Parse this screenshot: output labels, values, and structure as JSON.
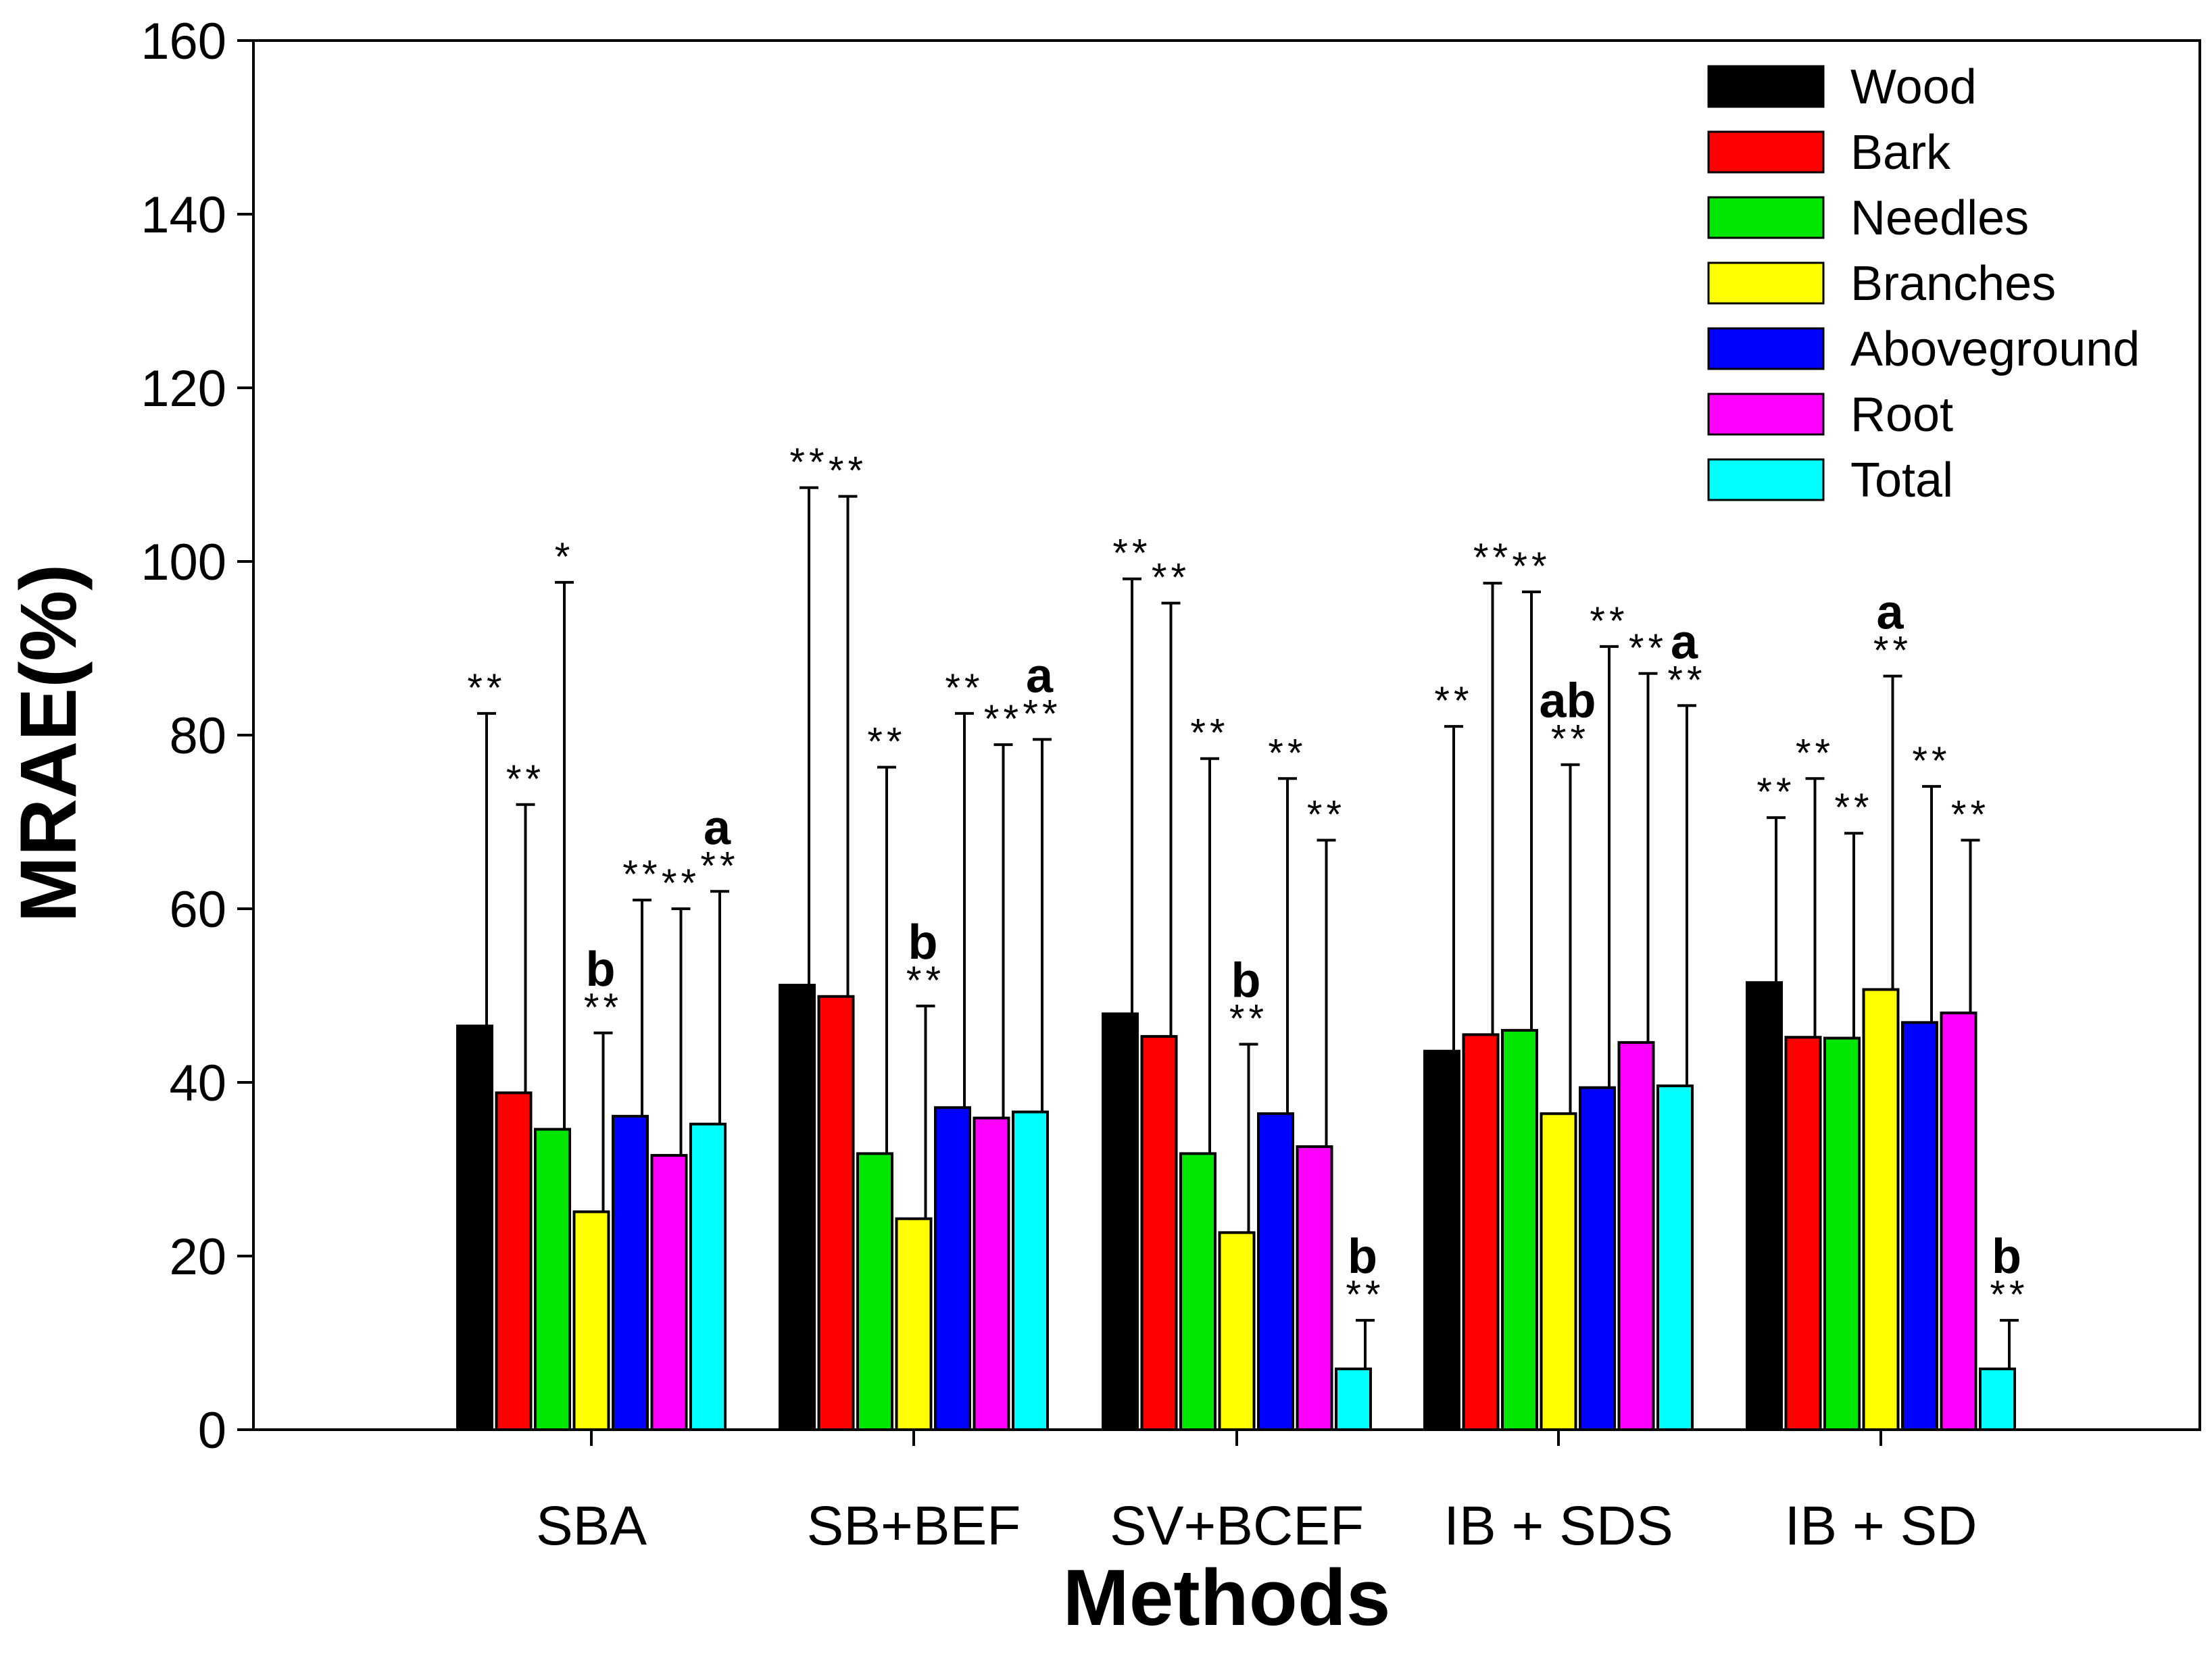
{
  "chart_data": {
    "type": "bar",
    "title": "",
    "xlabel": "Methods",
    "ylabel": "MRAE(%)",
    "ylim": [
      0,
      160
    ],
    "yticks": [
      0,
      20,
      40,
      60,
      80,
      100,
      120,
      140,
      160
    ],
    "ytick_labels": [
      "0",
      "20",
      "40",
      "60",
      "80",
      "100",
      "120",
      "140",
      "160"
    ],
    "grid": false,
    "legend_position": "top-right",
    "categories": [
      "SBA",
      "SB+BEF",
      "SV+BCEF",
      "IB + SDS",
      "IB + SD"
    ],
    "series": [
      {
        "name": "Wood",
        "color": "#000000",
        "values": [
          46.5,
          51.2,
          47.9,
          43.6,
          51.5
        ],
        "error_upper": [
          82.5,
          108.5,
          98.0,
          81.0,
          70.5
        ],
        "significance": [
          "**",
          "**",
          "**",
          "**",
          "**"
        ],
        "letters": [
          "",
          "",
          "",
          "",
          ""
        ]
      },
      {
        "name": "Bark",
        "color": "#ff0000",
        "values": [
          38.8,
          49.9,
          45.3,
          45.5,
          45.2
        ],
        "error_upper": [
          72.0,
          107.5,
          95.2,
          97.5,
          75.0
        ],
        "significance": [
          "**",
          "**",
          "**",
          "**",
          "**"
        ],
        "letters": [
          "",
          "",
          "",
          "",
          ""
        ]
      },
      {
        "name": "Needles",
        "color": "#00e600",
        "values": [
          34.6,
          31.8,
          31.8,
          46.0,
          45.1
        ],
        "error_upper": [
          97.6,
          76.3,
          77.3,
          96.5,
          68.7
        ],
        "significance": [
          "*",
          "**",
          "**",
          "**",
          "**"
        ],
        "letters": [
          "",
          "",
          "",
          "",
          ""
        ]
      },
      {
        "name": "Branches",
        "color": "#ffff00",
        "values": [
          25.1,
          24.3,
          22.7,
          36.4,
          50.7
        ],
        "error_upper": [
          45.7,
          48.8,
          44.4,
          76.6,
          86.8
        ],
        "significance": [
          "**",
          "**",
          "**",
          "**",
          "**"
        ],
        "letters": [
          "b",
          "b",
          "b",
          "ab",
          "a"
        ]
      },
      {
        "name": "Aboveground",
        "color": "#0000ff",
        "values": [
          36.1,
          37.1,
          36.4,
          39.4,
          46.9
        ],
        "error_upper": [
          61.0,
          82.5,
          75.0,
          90.2,
          74.1
        ],
        "significance": [
          "**",
          "**",
          "**",
          "**",
          "**"
        ],
        "letters": [
          "",
          "",
          "",
          "",
          ""
        ]
      },
      {
        "name": "Root",
        "color": "#ff00ff",
        "values": [
          31.6,
          35.9,
          32.6,
          44.6,
          48.0
        ],
        "error_upper": [
          60.0,
          78.9,
          67.9,
          87.1,
          67.9
        ],
        "significance": [
          "**",
          "**",
          "**",
          "**",
          "**"
        ],
        "letters": [
          "",
          "",
          "",
          "",
          ""
        ]
      },
      {
        "name": "Total",
        "color": "#00ffff",
        "values": [
          35.2,
          36.6,
          7.0,
          39.6,
          7.0
        ],
        "error_upper": [
          62.0,
          79.5,
          12.6,
          83.4,
          12.6
        ],
        "significance": [
          "**",
          "**",
          "**",
          "**",
          "**"
        ],
        "letters": [
          "a",
          "a",
          "b",
          "a",
          "b"
        ]
      }
    ]
  }
}
